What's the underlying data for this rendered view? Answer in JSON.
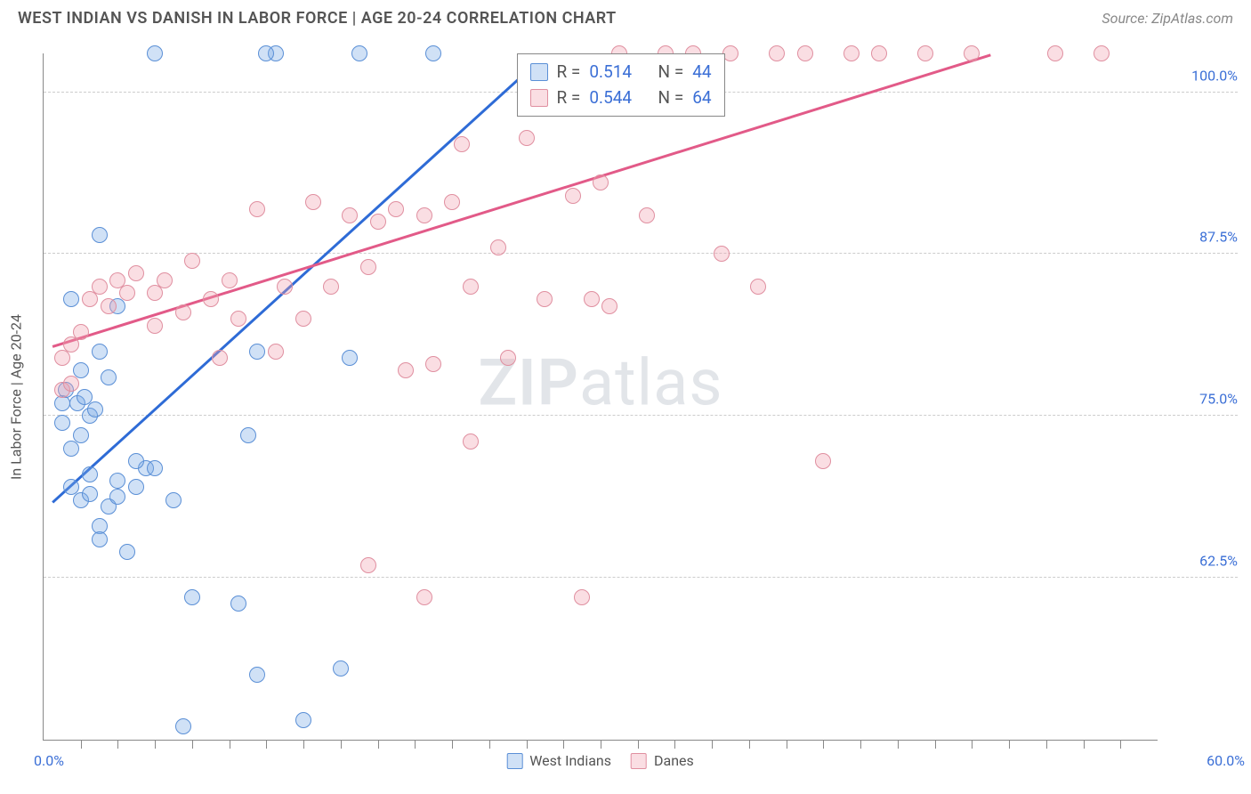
{
  "header": {
    "title": "WEST INDIAN VS DANISH IN LABOR FORCE | AGE 20-24 CORRELATION CHART",
    "source": "Source: ZipAtlas.com"
  },
  "chart": {
    "type": "scatter",
    "ylabel": "In Labor Force | Age 20-24",
    "x_domain": [
      0,
      60
    ],
    "y_domain": [
      50,
      103
    ],
    "y_ticks": [
      62.5,
      75.0,
      87.5,
      100.0
    ],
    "y_tick_labels": [
      "62.5%",
      "75.0%",
      "87.5%",
      "100.0%"
    ],
    "x_origin_label": "0.0%",
    "x_end_label": "60.0%",
    "x_minor_ticks": [
      2,
      4,
      6,
      8,
      10,
      12,
      14,
      16,
      18,
      20,
      22,
      24,
      26,
      28,
      30,
      32,
      34,
      36,
      38,
      40,
      42,
      44,
      46,
      48,
      50,
      52,
      54,
      56,
      58
    ],
    "background_color": "#ffffff",
    "grid_color": "#cccccc",
    "axis_color": "#888888",
    "watermark": {
      "prefix": "ZIP",
      "suffix": "atlas"
    },
    "series": [
      {
        "name": "West Indians",
        "fill": "rgba(120,170,230,0.35)",
        "stroke": "#5a8fd6",
        "trend_color": "#2e6bd6",
        "trend": {
          "x1": 0.5,
          "y1": 68.5,
          "x2": 27,
          "y2": 103
        },
        "R": "0.514",
        "N": "44",
        "points": [
          [
            2.0,
            68.5
          ],
          [
            2.5,
            69.0
          ],
          [
            3.0,
            66.5
          ],
          [
            3.5,
            68.0
          ],
          [
            4.0,
            68.8
          ],
          [
            3.0,
            65.5
          ],
          [
            4.5,
            64.5
          ],
          [
            4.0,
            70.0
          ],
          [
            5.0,
            69.5
          ],
          [
            5.5,
            71.0
          ],
          [
            1.5,
            72.5
          ],
          [
            2.0,
            73.5
          ],
          [
            2.5,
            75.0
          ],
          [
            1.8,
            76.0
          ],
          [
            2.2,
            76.5
          ],
          [
            2.0,
            78.5
          ],
          [
            2.8,
            75.5
          ],
          [
            3.5,
            78.0
          ],
          [
            1.5,
            84.0
          ],
          [
            3.0,
            89.0
          ],
          [
            5.0,
            71.5
          ],
          [
            6.0,
            71.0
          ],
          [
            7.0,
            68.5
          ],
          [
            11.0,
            73.5
          ],
          [
            11.5,
            80.0
          ],
          [
            6.0,
            103.0
          ],
          [
            12.5,
            103.0
          ],
          [
            17.0,
            103.0
          ],
          [
            21.0,
            103.0
          ],
          [
            16.5,
            79.5
          ],
          [
            12.0,
            103.0
          ],
          [
            8.0,
            61.0
          ],
          [
            10.5,
            60.5
          ],
          [
            11.5,
            55.0
          ],
          [
            16.0,
            55.5
          ],
          [
            14.0,
            51.5
          ],
          [
            7.5,
            51.0
          ],
          [
            3.0,
            80.0
          ],
          [
            4.0,
            83.5
          ],
          [
            2.5,
            70.5
          ],
          [
            1.0,
            74.5
          ],
          [
            1.0,
            76.0
          ],
          [
            1.2,
            77.0
          ],
          [
            1.5,
            69.5
          ]
        ]
      },
      {
        "name": "Danes",
        "fill": "rgba(240,160,175,0.35)",
        "stroke": "#e08fa0",
        "trend_color": "#e25a88",
        "trend": {
          "x1": 0.5,
          "y1": 80.5,
          "x2": 51,
          "y2": 103
        },
        "R": "0.544",
        "N": "64",
        "points": [
          [
            1.0,
            77.0
          ],
          [
            1.5,
            77.5
          ],
          [
            1.0,
            79.5
          ],
          [
            1.5,
            80.5
          ],
          [
            2.0,
            81.5
          ],
          [
            2.5,
            84.0
          ],
          [
            3.0,
            85.0
          ],
          [
            3.5,
            83.5
          ],
          [
            4.0,
            85.5
          ],
          [
            4.5,
            84.5
          ],
          [
            5.0,
            86.0
          ],
          [
            6.0,
            84.5
          ],
          [
            6.5,
            85.5
          ],
          [
            7.5,
            83.0
          ],
          [
            8.0,
            87.0
          ],
          [
            9.0,
            84.0
          ],
          [
            10.0,
            85.5
          ],
          [
            11.5,
            91.0
          ],
          [
            13.0,
            85.0
          ],
          [
            14.5,
            91.5
          ],
          [
            15.5,
            85.0
          ],
          [
            16.5,
            90.5
          ],
          [
            17.5,
            86.5
          ],
          [
            18.0,
            90.0
          ],
          [
            19.0,
            91.0
          ],
          [
            20.5,
            90.5
          ],
          [
            21.0,
            79.0
          ],
          [
            22.0,
            91.5
          ],
          [
            22.5,
            96.0
          ],
          [
            23.0,
            85.0
          ],
          [
            24.5,
            88.0
          ],
          [
            25.0,
            79.5
          ],
          [
            26.0,
            96.5
          ],
          [
            27.0,
            84.0
          ],
          [
            28.5,
            92.0
          ],
          [
            29.5,
            84.0
          ],
          [
            30.0,
            93.0
          ],
          [
            31.0,
            103.0
          ],
          [
            32.5,
            90.5
          ],
          [
            33.5,
            103.0
          ],
          [
            35.0,
            103.0
          ],
          [
            36.5,
            87.5
          ],
          [
            37.0,
            103.0
          ],
          [
            38.5,
            85.0
          ],
          [
            39.5,
            103.0
          ],
          [
            41.0,
            103.0
          ],
          [
            42.0,
            71.5
          ],
          [
            43.5,
            103.0
          ],
          [
            45.0,
            103.0
          ],
          [
            47.5,
            103.0
          ],
          [
            50.0,
            103.0
          ],
          [
            54.5,
            103.0
          ],
          [
            57.0,
            103.0
          ],
          [
            17.5,
            63.5
          ],
          [
            20.5,
            61.0
          ],
          [
            29.0,
            61.0
          ],
          [
            23.0,
            73.0
          ],
          [
            19.5,
            78.5
          ],
          [
            6.0,
            82.0
          ],
          [
            10.5,
            82.5
          ],
          [
            12.5,
            80.0
          ],
          [
            14.0,
            82.5
          ],
          [
            9.5,
            79.5
          ],
          [
            30.5,
            83.5
          ]
        ]
      }
    ],
    "legend": {
      "stats_rows": [
        {
          "series_idx": 0,
          "R_label": "R =",
          "N_label": "N ="
        },
        {
          "series_idx": 1,
          "R_label": "R =",
          "N_label": "N ="
        }
      ]
    }
  }
}
